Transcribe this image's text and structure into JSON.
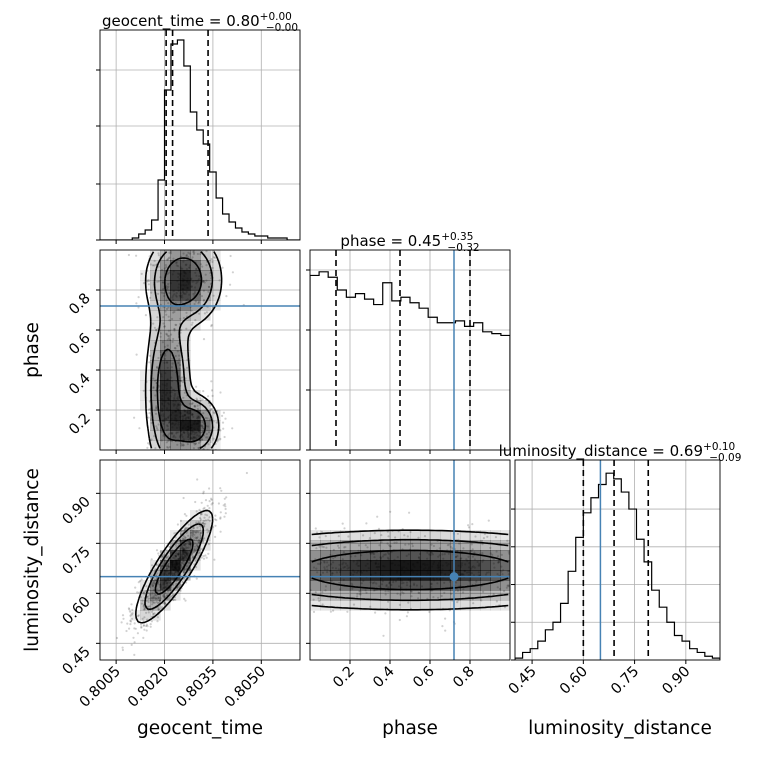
{
  "chart_data": {
    "type": "corner",
    "parameters": [
      "geocent_time",
      "phase",
      "luminosity_distance"
    ],
    "axis_labels": [
      "geocent_time",
      "phase",
      "luminosity_distance"
    ],
    "ranges": {
      "geocent_time": [
        0.8,
        0.8062
      ],
      "phase": [
        0.0,
        1.0
      ],
      "luminosity_distance": [
        0.4,
        1.0
      ]
    },
    "ticks": {
      "geocent_time": {
        "values": [
          0.8005,
          0.802,
          0.8035,
          0.805
        ],
        "labels": [
          "0.8005",
          "0.8020",
          "0.8035",
          "0.8050"
        ]
      },
      "phase": {
        "values": [
          0.2,
          0.4,
          0.6,
          0.8
        ],
        "labels": [
          "0.2",
          "0.4",
          "0.6",
          "0.8"
        ]
      },
      "luminosity_distance": {
        "values": [
          0.45,
          0.6,
          0.75,
          0.9
        ],
        "labels": [
          "0.45",
          "0.60",
          "0.75",
          "0.90"
        ]
      }
    },
    "truths": {
      "geocent_time": null,
      "phase": 0.72,
      "luminosity_distance": 0.65
    },
    "truth_color": "#4682b4",
    "grid": true,
    "colors": {
      "hist": "#000000",
      "density": "#000000",
      "points": "#000000",
      "grid": "#b0b0b0"
    },
    "titles": [
      {
        "param": "geocent_time",
        "text": "geocent_time = 0.80",
        "plus": "+0.00",
        "minus": "−0.00"
      },
      {
        "param": "phase",
        "text": "phase = 0.45",
        "plus": "+0.35",
        "minus": "−0.32"
      },
      {
        "param": "luminosity_distance",
        "text": "luminosity_distance = 0.69",
        "plus": "+0.10",
        "minus": "−0.09"
      }
    ],
    "quantiles": {
      "geocent_time": [
        0.80205,
        0.80225,
        0.80335
      ],
      "phase": [
        0.13,
        0.45,
        0.8
      ],
      "luminosity_distance": [
        0.6,
        0.69,
        0.79
      ]
    },
    "marginals": {
      "geocent_time": {
        "edges": [
          0.8,
          0.8062
        ],
        "counts": [
          0,
          0,
          0,
          0,
          0,
          0.01,
          0.03,
          0.05,
          0.1,
          0.3,
          0.75,
          0.98,
          1.0,
          0.87,
          0.64,
          0.55,
          0.48,
          0.34,
          0.21,
          0.13,
          0.09,
          0.06,
          0.04,
          0.03,
          0.02,
          0.02,
          0.01,
          0.01,
          0.01,
          0,
          0
        ],
        "ylim": [
          0,
          1.05
        ],
        "yticks": [
          0,
          0.28,
          0.57,
          0.85
        ]
      },
      "phase": {
        "edges": [
          0.0,
          1.0
        ],
        "counts": [
          0.96,
          0.98,
          0.95,
          0.88,
          0.84,
          0.86,
          0.83,
          0.8,
          0.92,
          0.82,
          0.84,
          0.81,
          0.78,
          0.73,
          0.7,
          0.7,
          0.71,
          0.68,
          0.7,
          0.65,
          0.64,
          0.63
        ],
        "ylim": [
          0,
          1.1
        ],
        "yticks": [
          0,
          0.33,
          0.66,
          0.99
        ]
      },
      "luminosity_distance": {
        "edges": [
          0.4,
          1.0
        ],
        "counts": [
          0.01,
          0.04,
          0.06,
          0.1,
          0.16,
          0.2,
          0.3,
          0.47,
          0.65,
          0.78,
          0.86,
          0.93,
          0.99,
          0.96,
          0.89,
          0.8,
          0.64,
          0.52,
          0.37,
          0.28,
          0.2,
          0.13,
          0.1,
          0.06,
          0.04,
          0.02,
          0.01
        ],
        "ylim": [
          0,
          1.06
        ],
        "yticks": [
          0,
          0.2,
          0.4,
          0.6,
          0.8
        ]
      }
    },
    "joint_distributions": [
      {
        "x": "geocent_time",
        "y": "phase",
        "components": [
          {
            "x": 0.8021,
            "y": 0.3,
            "sx": 0.00035,
            "sy": 0.22
          },
          {
            "x": 0.8029,
            "y": 0.12,
            "sx": 0.0004,
            "sy": 0.08
          },
          {
            "x": 0.8026,
            "y": 0.85,
            "sx": 0.0006,
            "sy": 0.12
          }
        ]
      },
      {
        "x": "geocent_time",
        "y": "luminosity_distance",
        "components": [
          {
            "x": 0.8023,
            "y": 0.68,
            "sx": 0.0006,
            "sy": 0.085,
            "rho": 0.85
          }
        ]
      },
      {
        "x": "phase",
        "y": "luminosity_distance",
        "components": [
          {
            "x": 0.5,
            "y": 0.67,
            "sx": 0.55,
            "sy": 0.06
          }
        ]
      }
    ]
  }
}
